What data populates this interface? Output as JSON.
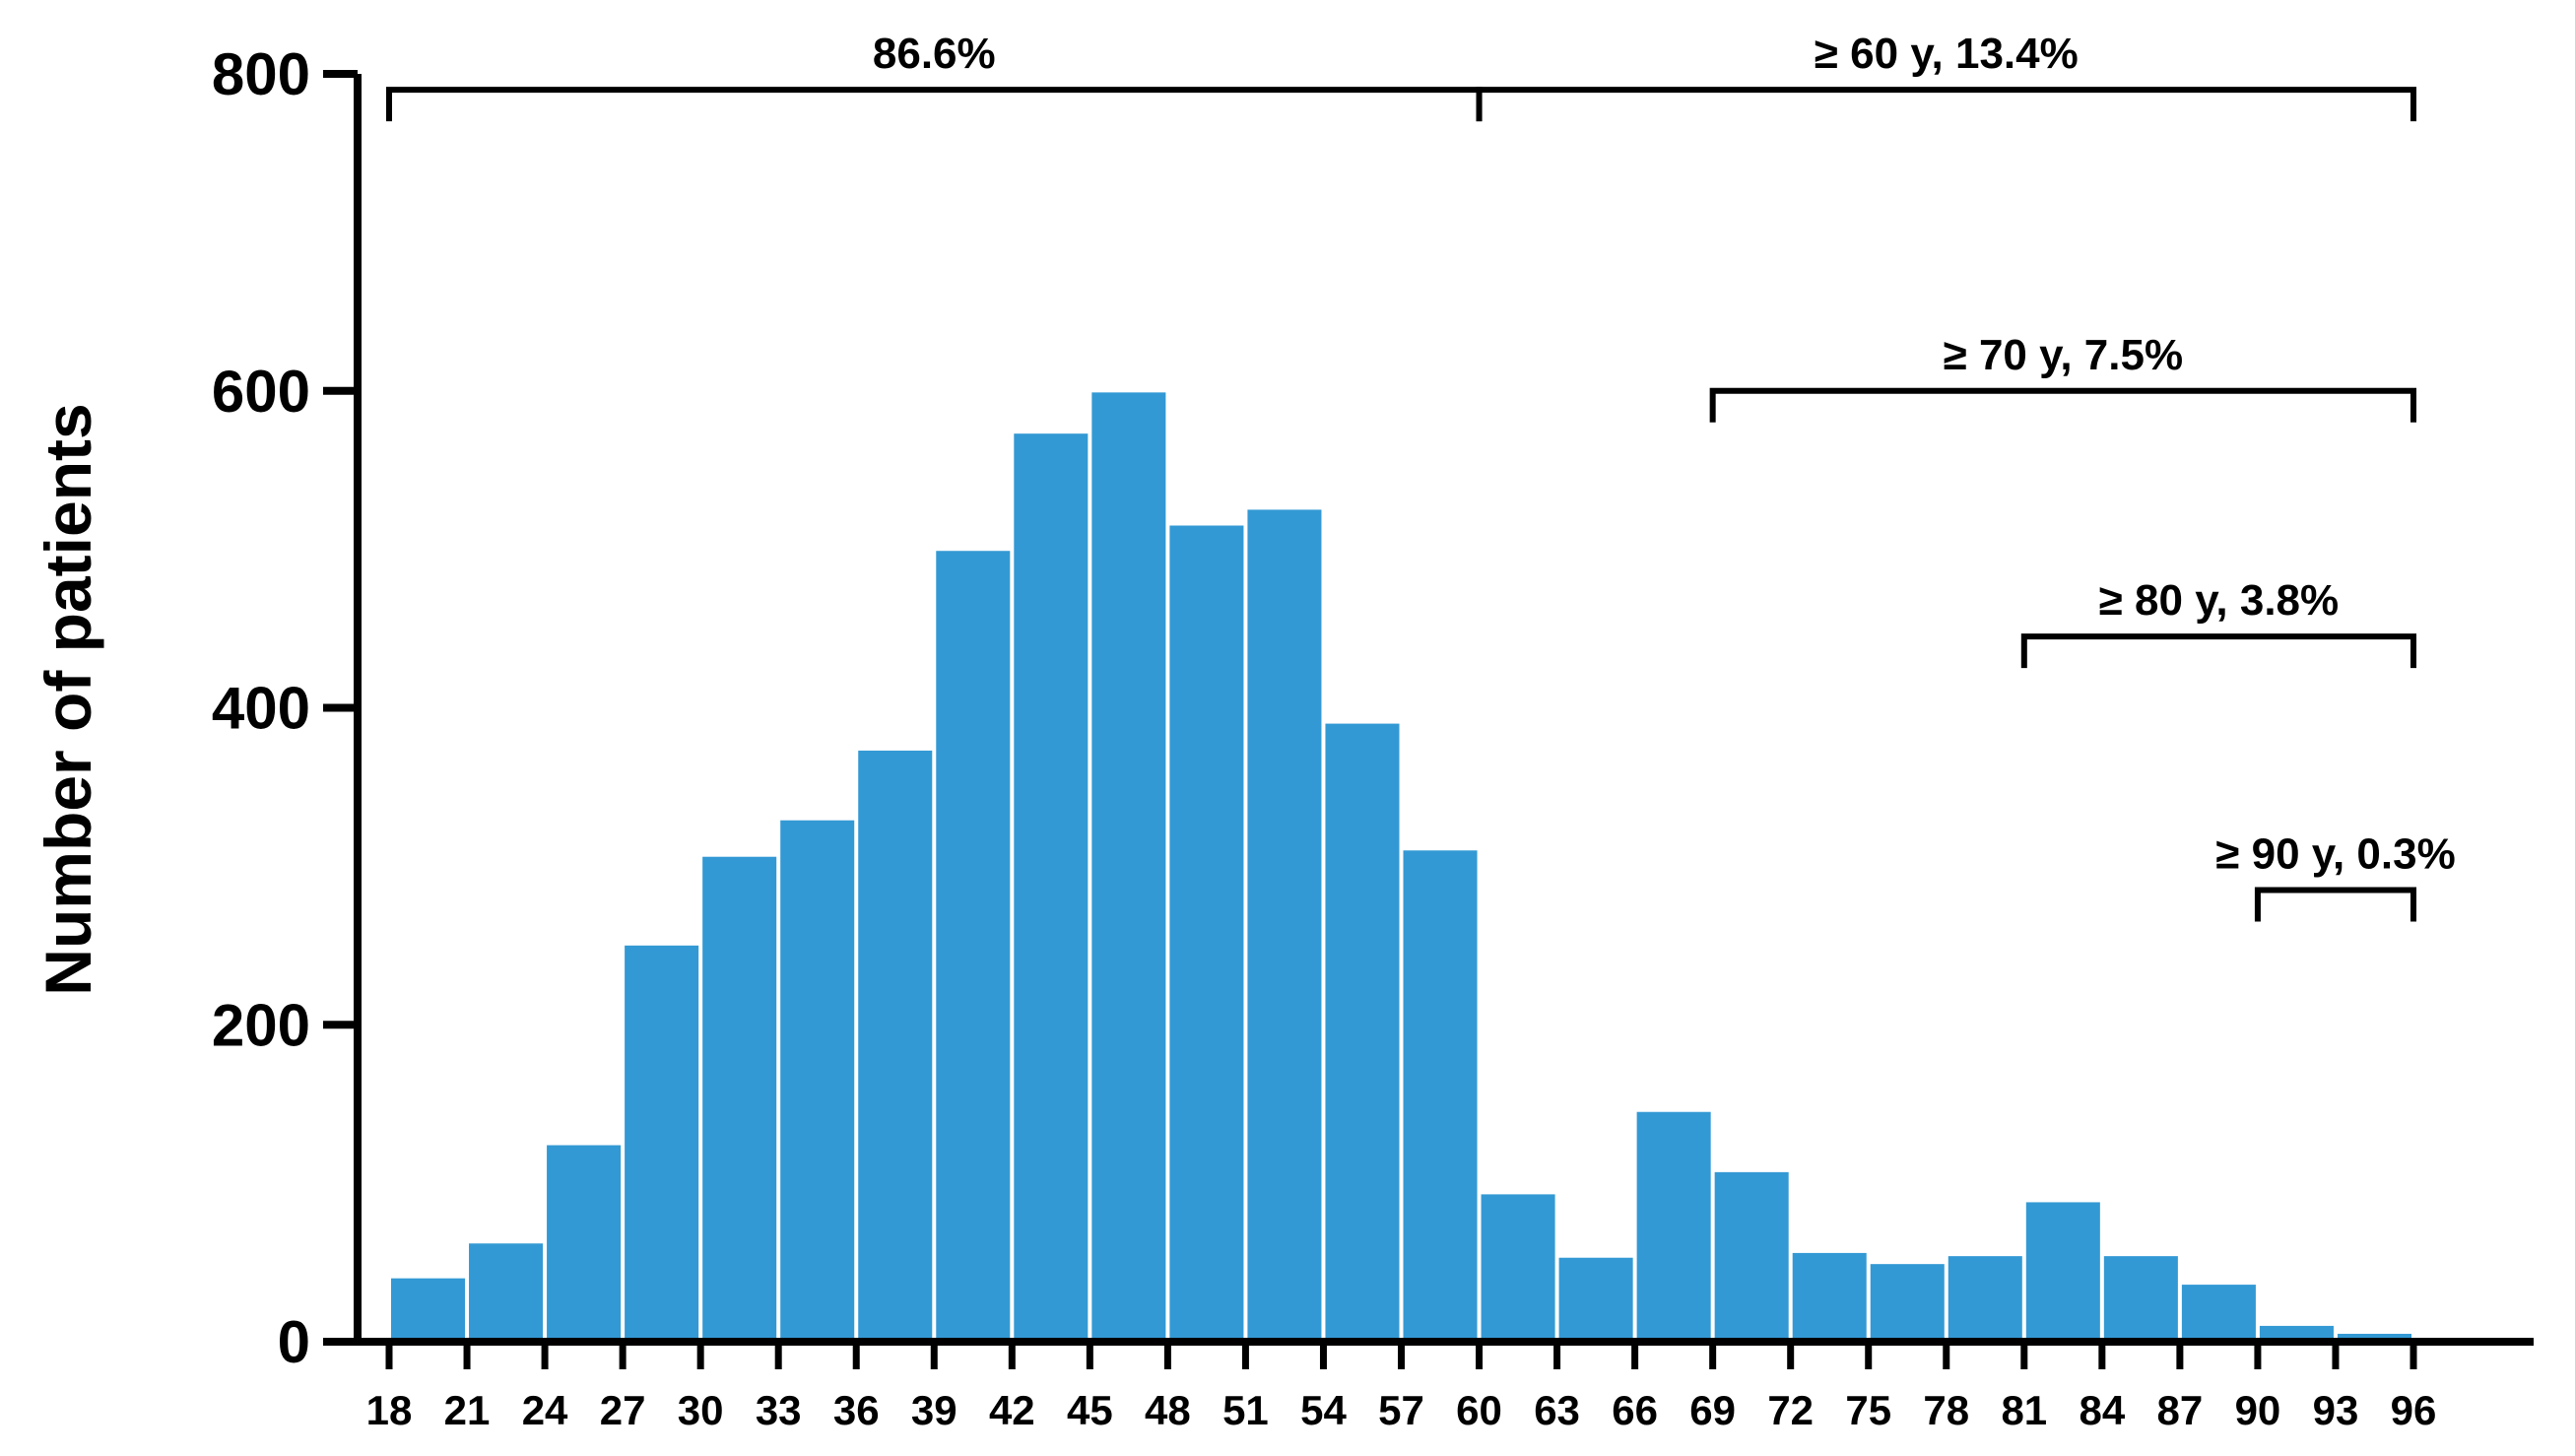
{
  "chart_data": {
    "type": "bar",
    "title": "",
    "xlabel": "",
    "ylabel": "Number of patients",
    "ylim": [
      0,
      800
    ],
    "y_ticks": [
      0,
      200,
      400,
      600,
      800
    ],
    "x_tick_labels": [
      "18",
      "21",
      "24",
      "27",
      "30",
      "33",
      "36",
      "39",
      "42",
      "45",
      "48",
      "51",
      "54",
      "57",
      "60",
      "63",
      "66",
      "69",
      "72",
      "75",
      "78",
      "81",
      "84",
      "87",
      "90",
      "93",
      "96"
    ],
    "bins": [
      {
        "start": 18,
        "end": 21,
        "value": 40
      },
      {
        "start": 21,
        "end": 24,
        "value": 62
      },
      {
        "start": 24,
        "end": 27,
        "value": 124
      },
      {
        "start": 27,
        "end": 30,
        "value": 250
      },
      {
        "start": 30,
        "end": 33,
        "value": 306
      },
      {
        "start": 33,
        "end": 36,
        "value": 329
      },
      {
        "start": 36,
        "end": 39,
        "value": 373
      },
      {
        "start": 39,
        "end": 42,
        "value": 499
      },
      {
        "start": 42,
        "end": 45,
        "value": 573
      },
      {
        "start": 45,
        "end": 48,
        "value": 599
      },
      {
        "start": 48,
        "end": 51,
        "value": 515
      },
      {
        "start": 51,
        "end": 54,
        "value": 525
      },
      {
        "start": 54,
        "end": 57,
        "value": 390
      },
      {
        "start": 57,
        "end": 60,
        "value": 310
      },
      {
        "start": 60,
        "end": 63,
        "value": 93
      },
      {
        "start": 63,
        "end": 66,
        "value": 53
      },
      {
        "start": 66,
        "end": 69,
        "value": 145
      },
      {
        "start": 69,
        "end": 72,
        "value": 107
      },
      {
        "start": 72,
        "end": 75,
        "value": 56
      },
      {
        "start": 75,
        "end": 78,
        "value": 49
      },
      {
        "start": 78,
        "end": 81,
        "value": 54
      },
      {
        "start": 81,
        "end": 84,
        "value": 88
      },
      {
        "start": 84,
        "end": 87,
        "value": 54
      },
      {
        "start": 87,
        "end": 90,
        "value": 36
      },
      {
        "start": 90,
        "end": 93,
        "value": 10
      },
      {
        "start": 93,
        "end": 96,
        "value": 5
      }
    ],
    "bar_color": "#3399d4",
    "grid": false,
    "annotations": [
      {
        "label": "86.6%",
        "from": 18,
        "to": 60,
        "level": 790
      },
      {
        "label": "≥ 60 y, 13.4%",
        "from": 60,
        "to": 96,
        "level": 790
      },
      {
        "label": "≥ 70 y, 7.5%",
        "from": 69,
        "to": 96,
        "level": 600
      },
      {
        "label": "≥ 80 y, 3.8%",
        "from": 81,
        "to": 96,
        "level": 445
      },
      {
        "label": "≥ 90 y, 0.3%",
        "from": 90,
        "to": 96,
        "level": 285
      }
    ]
  }
}
